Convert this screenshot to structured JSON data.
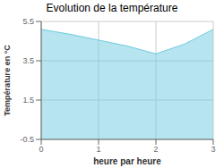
{
  "chart_data": {
    "type": "area",
    "title": "Evolution de la température",
    "xlabel": "heure par heure",
    "ylabel": "Température en °C",
    "x": [
      0,
      0.5,
      1,
      1.5,
      2,
      2.5,
      3
    ],
    "values": [
      5.1,
      4.85,
      4.55,
      4.25,
      3.85,
      4.35,
      5.1
    ],
    "xlim": [
      0,
      3
    ],
    "ylim": [
      -0.5,
      5.5
    ],
    "xticks": [
      0,
      1,
      2,
      3
    ],
    "yticks": [
      5.5,
      3.5,
      1.5,
      -0.5
    ],
    "color": "#6ecae0",
    "grid": true
  }
}
